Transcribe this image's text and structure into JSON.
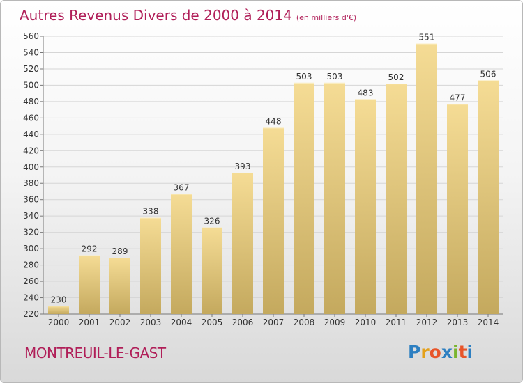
{
  "title": "Autres Revenus Divers de 2000 à 2014",
  "subtitle": "(en milliers d'€)",
  "commune": "MONTREUIL-LE-GAST",
  "logo": {
    "letters": [
      "P",
      "r",
      "o",
      "x",
      "i",
      "t",
      "i"
    ],
    "colors": [
      "#2d7fc1",
      "#e4a11b",
      "#e8552a",
      "#2d7fc1",
      "#7ab52f",
      "#e8552a",
      "#2d7fc1"
    ]
  },
  "colors": {
    "accent": "#b01e58",
    "bar_top": "#f5dc95",
    "bar_bottom": "#c4a95e",
    "grid": "#d6d6d6"
  },
  "chart_data": {
    "type": "bar",
    "categories": [
      "2000",
      "2001",
      "2002",
      "2003",
      "2004",
      "2005",
      "2006",
      "2007",
      "2008",
      "2009",
      "2010",
      "2011",
      "2012",
      "2013",
      "2014"
    ],
    "values": [
      230,
      292,
      289,
      338,
      367,
      326,
      393,
      448,
      503,
      503,
      483,
      502,
      551,
      477,
      506
    ],
    "yticks": [
      220,
      240,
      260,
      280,
      300,
      320,
      340,
      360,
      380,
      400,
      420,
      440,
      460,
      480,
      500,
      520,
      540,
      560
    ],
    "ylim": [
      220,
      560
    ],
    "grid": true,
    "xlabel": "",
    "ylabel": ""
  }
}
